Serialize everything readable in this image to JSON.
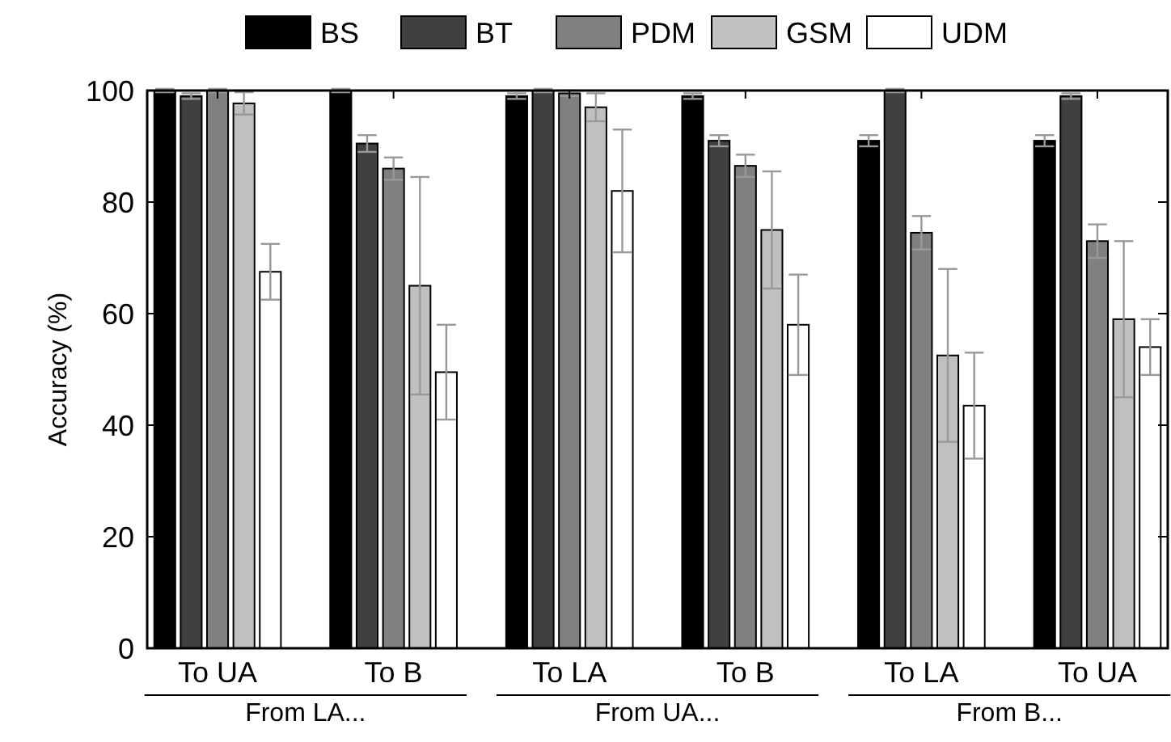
{
  "chart_data": {
    "type": "bar",
    "ylabel": "Accuracy (%)",
    "categories": [
      "To UA",
      "To B",
      "To LA",
      "To B",
      "To LA",
      "To UA"
    ],
    "annotations": [
      "From LA...",
      "From UA...",
      "From B..."
    ],
    "ylim": [
      0,
      100
    ],
    "yticks": [
      0,
      20,
      40,
      60,
      80,
      100
    ],
    "grid": false,
    "legend": "top",
    "series": [
      {
        "name": "BS",
        "color": "#000000",
        "values": [
          100,
          100,
          99,
          99,
          91,
          91
        ],
        "errors": [
          0.3,
          0.3,
          0.5,
          0.5,
          1,
          1
        ]
      },
      {
        "name": "BT",
        "color": "#404040",
        "values": [
          99,
          90.5,
          100,
          91,
          100,
          99
        ],
        "errors": [
          0.5,
          1.5,
          0.3,
          1,
          0.3,
          0.5
        ]
      },
      {
        "name": "PDM",
        "color": "#808080",
        "values": [
          100,
          86,
          99.5,
          86.5,
          74.5,
          73
        ],
        "errors": [
          0.3,
          2,
          0.5,
          2,
          3,
          3
        ]
      },
      {
        "name": "GSM",
        "color": "#c0c0c0",
        "values": [
          97.7,
          65,
          97,
          75,
          52.5,
          59
        ],
        "errors": [
          2,
          19.5,
          2.5,
          10.5,
          15.5,
          14
        ]
      },
      {
        "name": "UDM",
        "color": "#ffffff",
        "values": [
          67.5,
          49.5,
          82,
          58,
          43.5,
          54
        ],
        "errors": [
          5,
          8.5,
          11,
          9,
          9.5,
          5
        ]
      }
    ]
  }
}
